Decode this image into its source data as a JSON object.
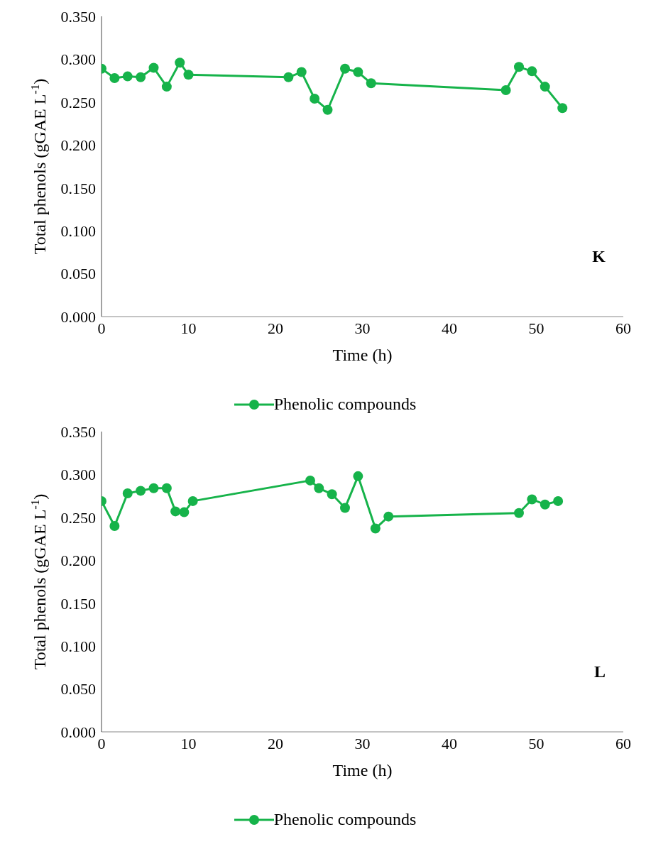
{
  "chart_data": [
    {
      "type": "line",
      "xlabel": "Time (h)",
      "ylabel": "Total phenols (gGAE L$^{-1}$)",
      "annotations": [
        "K"
      ],
      "xlim": [
        0,
        60
      ],
      "xticks": [
        0,
        10,
        20,
        30,
        40,
        50,
        60
      ],
      "ylim": [
        0,
        0.35
      ],
      "yticks": [
        {
          "value": 0,
          "label": "0.000"
        },
        {
          "value": 0.05,
          "label": "0.050"
        },
        {
          "value": 0.1,
          "label": "0.100"
        },
        {
          "value": 0.15,
          "label": "0.150"
        },
        {
          "value": 0.2,
          "label": "0.200"
        },
        {
          "value": 0.25,
          "label": "0.250"
        },
        {
          "value": 0.3,
          "label": "0.300"
        },
        {
          "value": 0.35,
          "label": "0.350"
        }
      ],
      "grid": false,
      "legend": "bottom",
      "marker": "circle",
      "line_style": "solid",
      "x": [
        0,
        1.5,
        3,
        4.5,
        6,
        7.5,
        9,
        10,
        21.5,
        23,
        24.5,
        26,
        28,
        29.5,
        31,
        46.5,
        48,
        49.5,
        51,
        53
      ],
      "series": [
        {
          "name": "Phenolic compounds",
          "color": "#16b34a",
          "values": [
            0.289,
            0.278,
            0.28,
            0.279,
            0.29,
            0.268,
            0.296,
            0.282,
            0.279,
            0.285,
            0.254,
            0.241,
            0.289,
            0.285,
            0.272,
            0.264,
            0.291,
            0.286,
            0.268,
            0.243
          ]
        }
      ]
    },
    {
      "type": "line",
      "xlabel": "Time (h)",
      "ylabel": "Total phenols (gGAE L$^{-1}$)",
      "annotations": [
        "L"
      ],
      "xlim": [
        0,
        60
      ],
      "xticks": [
        0,
        10,
        20,
        30,
        40,
        50,
        60
      ],
      "ylim": [
        0,
        0.35
      ],
      "yticks": [
        {
          "value": 0,
          "label": "0.000"
        },
        {
          "value": 0.05,
          "label": "0.050"
        },
        {
          "value": 0.1,
          "label": "0.100"
        },
        {
          "value": 0.15,
          "label": "0.150"
        },
        {
          "value": 0.2,
          "label": "0.200"
        },
        {
          "value": 0.25,
          "label": "0.250"
        },
        {
          "value": 0.3,
          "label": "0.300"
        },
        {
          "value": 0.35,
          "label": "0.350"
        }
      ],
      "grid": false,
      "legend": "bottom",
      "marker": "circle",
      "line_style": "solid",
      "x": [
        0,
        1.5,
        3,
        4.5,
        6,
        7.5,
        8.5,
        9.5,
        10.5,
        24,
        25,
        26.5,
        28,
        29.5,
        31.5,
        33,
        48,
        49.5,
        51,
        52.5
      ],
      "series": [
        {
          "name": "Phenolic compounds",
          "color": "#16b34a",
          "values": [
            0.269,
            0.24,
            0.278,
            0.281,
            0.284,
            0.284,
            0.257,
            0.256,
            0.269,
            0.293,
            0.284,
            0.277,
            0.261,
            0.298,
            0.237,
            0.251,
            0.255,
            0.271,
            0.265,
            0.269
          ]
        }
      ]
    }
  ]
}
